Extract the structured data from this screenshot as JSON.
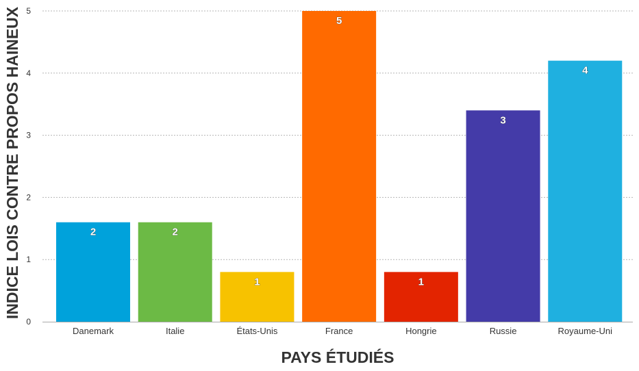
{
  "chart_data": {
    "type": "bar",
    "title": "",
    "xlabel": "PAYS ÉTUDIÉS",
    "ylabel": "INDICE LOIS CONTRE PROPOS HAINEUX",
    "ylim": [
      0,
      5
    ],
    "yticks": [
      "0",
      "1",
      "2",
      "3",
      "4",
      "5"
    ],
    "grid": true,
    "legend": "none",
    "categories": [
      "Danemark",
      "Italie",
      "États-Unis",
      "France",
      "Hongrie",
      "Russie",
      "Royaume-Uni"
    ],
    "values": [
      1.6,
      1.6,
      0.8,
      5.0,
      0.8,
      3.4,
      4.2
    ],
    "data_labels": [
      "2",
      "2",
      "1",
      "5",
      "1",
      "3",
      "4"
    ],
    "colors": [
      "#00a2db",
      "#6cba45",
      "#f7c200",
      "#ff6a00",
      "#e32400",
      "#443ba8",
      "#1fb0e0"
    ]
  }
}
